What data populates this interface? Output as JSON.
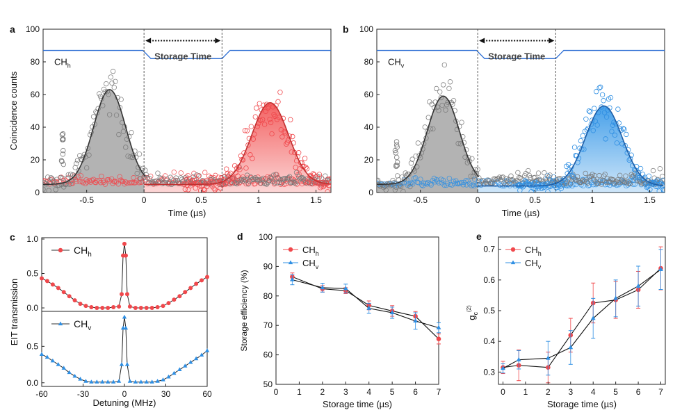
{
  "colors": {
    "gray": "#8c8c8c",
    "grayFill": "#9a9a9a",
    "red": "#f0484c",
    "blue": "#2f8fe3",
    "line": "#2e6fd4",
    "dark": "#333333"
  },
  "chart_data": [
    {
      "panel": "a",
      "type": "scatter",
      "subtype": "coincidence-histogram",
      "xlabel": "Time (µs)",
      "ylabel": "Coincidence counts",
      "xlim": [
        -0.88,
        1.63
      ],
      "ylim": [
        0,
        100
      ],
      "xticks": [
        "-0.5",
        "0",
        "0.5",
        "1",
        "1.5"
      ],
      "yticks": [
        "0",
        "20",
        "40",
        "60",
        "80",
        "100"
      ],
      "channel": "CH",
      "channel_sub": "h",
      "storage_label": "Storage Time",
      "storage_window": [
        0,
        0.68
      ],
      "gate_level": {
        "high": 87,
        "low": 82
      },
      "series": [
        {
          "name": "write (gray)",
          "peak_x": -0.3,
          "peak_y": 63,
          "sigma": 0.14,
          "baseline": 5
        },
        {
          "name": "retrieved (red)",
          "peak_x": 1.1,
          "peak_y": 55,
          "sigma": 0.16,
          "baseline": 5
        }
      ]
    },
    {
      "panel": "b",
      "type": "scatter",
      "subtype": "coincidence-histogram",
      "xlabel": "Time (µs)",
      "ylabel": "",
      "xlim": [
        -0.88,
        1.63
      ],
      "ylim": [
        0,
        100
      ],
      "xticks": [
        "-0.5",
        "0",
        "0.5",
        "1",
        "1.5"
      ],
      "yticks": [
        "0",
        "20",
        "40",
        "60",
        "80",
        "100"
      ],
      "channel": "CH",
      "channel_sub": "v",
      "storage_label": "Storage Time",
      "storage_window": [
        0,
        0.68
      ],
      "gate_level": {
        "high": 87,
        "low": 82
      },
      "series": [
        {
          "name": "write (gray)",
          "peak_x": -0.3,
          "peak_y": 59,
          "sigma": 0.14,
          "baseline": 5
        },
        {
          "name": "retrieved (blue)",
          "peak_x": 1.1,
          "peak_y": 53,
          "sigma": 0.16,
          "baseline": 4
        }
      ]
    },
    {
      "panel": "c",
      "type": "line",
      "subtype": "EIT-transmission",
      "xlabel": "Detuning (MHz)",
      "ylabel": "EIT transmission",
      "xlim": [
        -60,
        60
      ],
      "xticks": [
        "-60",
        "-30",
        "0",
        "30",
        "60"
      ],
      "top": {
        "name": "CH",
        "sub": "h",
        "ylim": [
          -0.05,
          1.02
        ],
        "yticks": [
          "0.0",
          "0.5",
          "1.0"
        ],
        "tick_values": [
          0,
          0.5,
          1
        ],
        "x": [
          -60,
          -56,
          -52,
          -48,
          -44,
          -40,
          -36,
          -32,
          -28,
          -24,
          -20,
          -16,
          -12,
          -8,
          -4,
          -2,
          -1,
          0,
          1,
          2,
          4,
          8,
          12,
          16,
          20,
          24,
          28,
          32,
          36,
          40,
          44,
          48,
          52,
          56,
          60
        ],
        "y": [
          0.43,
          0.39,
          0.34,
          0.29,
          0.23,
          0.17,
          0.11,
          0.06,
          0.03,
          0.01,
          0.0,
          0.0,
          0.0,
          0.01,
          0.02,
          0.2,
          0.76,
          0.93,
          0.76,
          0.2,
          0.02,
          0.0,
          0.0,
          0.0,
          0.0,
          0.01,
          0.03,
          0.07,
          0.12,
          0.17,
          0.23,
          0.29,
          0.35,
          0.4,
          0.45
        ]
      },
      "bottom": {
        "name": "CH",
        "sub": "v",
        "ylim": [
          -0.05,
          0.98
        ],
        "yticks": [
          "0.0",
          "0.5"
        ],
        "tick_values": [
          0,
          0.5
        ],
        "x": [
          -60,
          -56,
          -52,
          -48,
          -44,
          -40,
          -36,
          -32,
          -28,
          -24,
          -20,
          -16,
          -12,
          -8,
          -4,
          -2,
          -1,
          0,
          1,
          2,
          4,
          8,
          12,
          16,
          20,
          24,
          28,
          32,
          36,
          40,
          44,
          48,
          52,
          56,
          60
        ],
        "y": [
          0.39,
          0.35,
          0.3,
          0.25,
          0.2,
          0.14,
          0.09,
          0.05,
          0.02,
          0.01,
          0.01,
          0.01,
          0.01,
          0.01,
          0.02,
          0.25,
          0.75,
          0.9,
          0.75,
          0.25,
          0.02,
          0.01,
          0.01,
          0.01,
          0.01,
          0.02,
          0.04,
          0.08,
          0.13,
          0.18,
          0.23,
          0.28,
          0.33,
          0.38,
          0.44
        ]
      }
    },
    {
      "panel": "d",
      "type": "line",
      "xlabel": "Storage time (µs)",
      "ylabel": "Storage efficiency (%)",
      "xlim": [
        0,
        7
      ],
      "ylim": [
        50,
        100
      ],
      "xticks": [
        "0",
        "1",
        "2",
        "3",
        "4",
        "5",
        "6",
        "7"
      ],
      "yticks": [
        "50",
        "60",
        "70",
        "80",
        "90",
        "100"
      ],
      "series": [
        {
          "name": "CH",
          "sub": "h",
          "color": "red",
          "x": [
            0.7,
            2,
            3,
            4,
            5,
            6,
            7
          ],
          "y": [
            86.5,
            82.4,
            81.8,
            76.8,
            74.9,
            73.1,
            65.4
          ],
          "err": [
            1.3,
            1.1,
            1.0,
            1.5,
            1.8,
            1.6,
            1.7
          ]
        },
        {
          "name": "CH",
          "sub": "v",
          "color": "blue",
          "x": [
            0.7,
            2,
            3,
            4,
            5,
            6,
            7
          ],
          "y": [
            85.5,
            82.8,
            82.5,
            75.8,
            74.3,
            71.5,
            69.2
          ],
          "err": [
            1.7,
            1.5,
            1.5,
            1.7,
            1.9,
            2.8,
            1.7
          ]
        }
      ]
    },
    {
      "panel": "e",
      "type": "line",
      "xlabel": "Storage time (µs)",
      "ylabel": "g",
      "ylabel_sub": "c",
      "ylabel_sup": "(2)",
      "xlim": [
        -0.2,
        7.2
      ],
      "ylim": [
        0.26,
        0.74
      ],
      "xticks": [
        "0",
        "1",
        "2",
        "3",
        "4",
        "5",
        "6",
        "7"
      ],
      "yticks": [
        "0.3",
        "0.4",
        "0.5",
        "0.6",
        "0.7"
      ],
      "series": [
        {
          "name": "CH",
          "sub": "h",
          "color": "red",
          "x": [
            0,
            0.7,
            2,
            3,
            4,
            5,
            6,
            7
          ],
          "y": [
            0.315,
            0.322,
            0.315,
            0.42,
            0.525,
            0.535,
            0.568,
            0.638
          ],
          "err": [
            0.02,
            0.05,
            0.05,
            0.055,
            0.065,
            0.06,
            0.06,
            0.07
          ]
        },
        {
          "name": "CH",
          "sub": "v",
          "color": "blue",
          "x": [
            0,
            0.7,
            2,
            3,
            4,
            5,
            6,
            7
          ],
          "y": [
            0.312,
            0.34,
            0.345,
            0.38,
            0.475,
            0.54,
            0.58,
            0.634
          ],
          "err": [
            0.015,
            0.03,
            0.055,
            0.055,
            0.065,
            0.06,
            0.065,
            0.065
          ]
        }
      ]
    }
  ]
}
